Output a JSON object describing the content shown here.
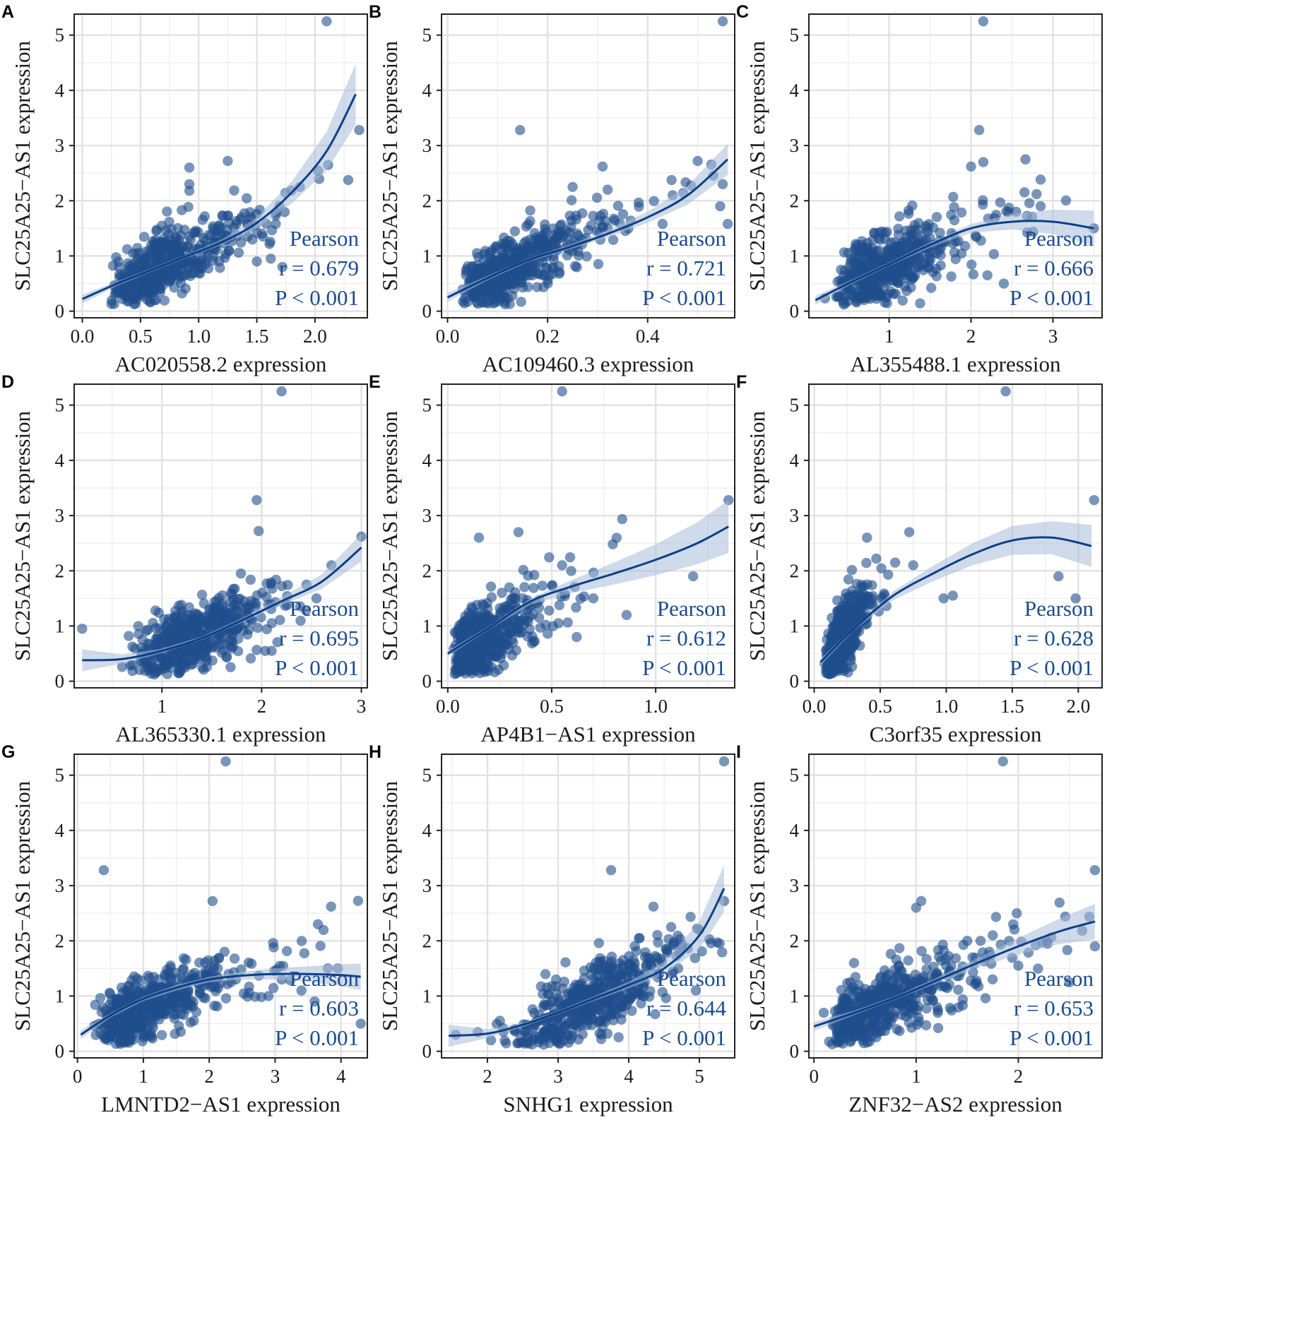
{
  "colors": {
    "point": "#1f4e8c",
    "line": "#0c3f86",
    "band": "#a8bcd8",
    "stat": "#1a4b8f",
    "grid": "#e3e3e3"
  },
  "chart_data": [
    {
      "panel": "A",
      "type": "scatter",
      "xlabel": "AC020558.2 expression",
      "ylabel": "SLC25A25−AS1 expression",
      "xlim": [
        -0.07,
        2.45
      ],
      "ylim": [
        -0.12,
        5.38
      ],
      "xticks": [
        0.0,
        0.5,
        1.0,
        1.5,
        2.0
      ],
      "xtick_labels": [
        "0.0",
        "0.5",
        "1.0",
        "1.5",
        "2.0"
      ],
      "yticks": [
        0,
        1,
        2,
        3,
        4,
        5
      ],
      "ytick_labels": [
        "0",
        "1",
        "2",
        "3",
        "4",
        "5"
      ],
      "stats": {
        "method": "Pearson",
        "r": "r = 0.679",
        "p": "P < 0.001"
      },
      "cloud": {
        "x_median": 0.7,
        "x_spread": 0.3,
        "slope": 1.0,
        "intercept": 0.15,
        "noise": 0.28,
        "n": 480,
        "x_min": 0.0,
        "x_max": 2.4
      },
      "outliers": [
        [
          2.1,
          5.25
        ],
        [
          2.38,
          3.28
        ],
        [
          1.25,
          2.72
        ],
        [
          0.92,
          2.3
        ],
        [
          0.92,
          2.18
        ],
        [
          0.92,
          2.6
        ],
        [
          1.72,
          0.8
        ],
        [
          1.62,
          0.95
        ],
        [
          1.5,
          0.9
        ],
        [
          1.87,
          2.25
        ]
      ],
      "fit": {
        "x": [
          0.0,
          0.3,
          0.6,
          0.9,
          1.2,
          1.5,
          1.8,
          2.1,
          2.35
        ],
        "y": [
          0.22,
          0.5,
          0.75,
          1.0,
          1.25,
          1.6,
          2.15,
          2.9,
          3.93
        ],
        "se": [
          0.08,
          0.04,
          0.03,
          0.03,
          0.05,
          0.1,
          0.2,
          0.35,
          0.55
        ]
      }
    },
    {
      "panel": "B",
      "type": "scatter",
      "xlabel": "AC109460.3 expression",
      "ylabel": "SLC25A25−AS1 expression",
      "xlim": [
        -0.012,
        0.574
      ],
      "ylim": [
        -0.12,
        5.38
      ],
      "xticks": [
        0.0,
        0.2,
        0.4
      ],
      "xtick_labels": [
        "0.0",
        "0.2",
        "0.4"
      ],
      "yticks": [
        0,
        1,
        2,
        3,
        4,
        5
      ],
      "ytick_labels": [
        "0",
        "1",
        "2",
        "3",
        "4",
        "5"
      ],
      "stats": {
        "method": "Pearson",
        "r": "r = 0.721",
        "p": "P < 0.001"
      },
      "cloud": {
        "x_median": 0.13,
        "x_spread": 0.07,
        "slope": 4.2,
        "intercept": 0.25,
        "noise": 0.28,
        "n": 480,
        "x_min": 0.0,
        "x_max": 0.56
      },
      "outliers": [
        [
          0.55,
          5.25
        ],
        [
          0.145,
          3.28
        ],
        [
          0.5,
          2.72
        ],
        [
          0.31,
          2.62
        ],
        [
          0.55,
          2.3
        ],
        [
          0.545,
          1.9
        ],
        [
          0.56,
          1.58
        ],
        [
          0.25,
          2.25
        ],
        [
          0.32,
          2.2
        ],
        [
          0.45,
          2.1
        ]
      ],
      "fit": {
        "x": [
          0.0,
          0.08,
          0.16,
          0.24,
          0.32,
          0.4,
          0.48,
          0.56
        ],
        "y": [
          0.25,
          0.6,
          0.92,
          1.15,
          1.4,
          1.7,
          2.1,
          2.75
        ],
        "se": [
          0.08,
          0.04,
          0.03,
          0.04,
          0.07,
          0.1,
          0.17,
          0.28
        ]
      }
    },
    {
      "panel": "C",
      "type": "scatter",
      "xlabel": "AL355488.1 expression",
      "ylabel": "SLC25A25−AS1 expression",
      "xlim": [
        0.02,
        3.6
      ],
      "ylim": [
        -0.12,
        5.38
      ],
      "xticks": [
        1,
        2,
        3
      ],
      "xtick_labels": [
        "1",
        "2",
        "3"
      ],
      "yticks": [
        0,
        1,
        2,
        3,
        4,
        5
      ],
      "ytick_labels": [
        "0",
        "1",
        "2",
        "3",
        "4",
        "5"
      ],
      "stats": {
        "method": "Pearson",
        "r": "r = 0.666",
        "p": "P < 0.001"
      },
      "cloud": {
        "x_median": 1.0,
        "x_spread": 0.4,
        "slope": 0.65,
        "intercept": 0.15,
        "noise": 0.3,
        "n": 480,
        "x_min": 0.1,
        "x_max": 3.5
      },
      "outliers": [
        [
          2.15,
          5.25
        ],
        [
          2.1,
          3.28
        ],
        [
          2.15,
          2.7
        ],
        [
          2.0,
          2.62
        ],
        [
          2.8,
          2.12
        ],
        [
          3.5,
          1.5
        ],
        [
          2.85,
          1.9
        ],
        [
          2.55,
          1.8
        ],
        [
          2.2,
          0.65
        ],
        [
          2.4,
          0.5
        ]
      ],
      "fit": {
        "x": [
          0.1,
          0.5,
          1.0,
          1.5,
          2.0,
          2.5,
          3.0,
          3.5
        ],
        "y": [
          0.2,
          0.5,
          0.85,
          1.2,
          1.5,
          1.62,
          1.62,
          1.5
        ],
        "se": [
          0.08,
          0.04,
          0.03,
          0.05,
          0.08,
          0.14,
          0.22,
          0.32
        ]
      }
    },
    {
      "panel": "D",
      "type": "scatter",
      "xlabel": "AL365330.1 expression",
      "ylabel": "SLC25A25−AS1 expression",
      "xlim": [
        0.12,
        3.06
      ],
      "ylim": [
        -0.12,
        5.38
      ],
      "xticks": [
        1,
        2,
        3
      ],
      "xtick_labels": [
        "1",
        "2",
        "3"
      ],
      "yticks": [
        0,
        1,
        2,
        3,
        4,
        5
      ],
      "ytick_labels": [
        "0",
        "1",
        "2",
        "3",
        "4",
        "5"
      ],
      "stats": {
        "method": "Pearson",
        "r": "r = 0.695",
        "p": "P < 0.001"
      },
      "cloud": {
        "x_median": 1.35,
        "x_spread": 0.35,
        "slope": 0.75,
        "intercept": -0.2,
        "noise": 0.3,
        "n": 480,
        "x_min": 0.3,
        "x_max": 3.0
      },
      "outliers": [
        [
          2.2,
          5.25
        ],
        [
          1.95,
          3.28
        ],
        [
          1.97,
          2.72
        ],
        [
          3.0,
          2.62
        ],
        [
          0.2,
          0.95
        ],
        [
          2.7,
          2.1
        ],
        [
          2.55,
          1.5
        ],
        [
          2.45,
          1.75
        ],
        [
          2.1,
          0.55
        ]
      ],
      "fit": {
        "x": [
          0.2,
          0.6,
          1.0,
          1.4,
          1.8,
          2.2,
          2.6,
          3.0
        ],
        "y": [
          0.38,
          0.4,
          0.55,
          0.78,
          1.1,
          1.45,
          1.8,
          2.42
        ],
        "se": [
          0.2,
          0.08,
          0.04,
          0.03,
          0.04,
          0.07,
          0.13,
          0.25
        ]
      }
    },
    {
      "panel": "E",
      "type": "scatter",
      "xlabel": "AP4B1−AS1 expression",
      "ylabel": "SLC25A25−AS1 expression",
      "xlim": [
        -0.03,
        1.38
      ],
      "ylim": [
        -0.12,
        5.38
      ],
      "xticks": [
        0.0,
        0.5,
        1.0
      ],
      "xtick_labels": [
        "0.0",
        "0.5",
        "1.0"
      ],
      "yticks": [
        0,
        1,
        2,
        3,
        4,
        5
      ],
      "ytick_labels": [
        "0",
        "1",
        "2",
        "3",
        "4",
        "5"
      ],
      "stats": {
        "method": "Pearson",
        "r": "r = 0.612",
        "p": "P < 0.001"
      },
      "cloud": {
        "x_median": 0.16,
        "x_spread": 0.1,
        "slope": 2.3,
        "intercept": 0.35,
        "noise": 0.32,
        "n": 480,
        "x_min": 0.0,
        "x_max": 1.35
      },
      "outliers": [
        [
          0.55,
          5.25
        ],
        [
          1.35,
          3.28
        ],
        [
          0.34,
          2.7
        ],
        [
          0.15,
          2.6
        ],
        [
          1.18,
          1.9
        ],
        [
          0.86,
          1.2
        ],
        [
          0.62,
          0.8
        ],
        [
          0.7,
          1.5
        ],
        [
          0.55,
          2.1
        ]
      ],
      "fit": {
        "x": [
          0.0,
          0.2,
          0.4,
          0.6,
          0.8,
          1.0,
          1.2,
          1.35
        ],
        "y": [
          0.5,
          0.97,
          1.45,
          1.72,
          1.95,
          2.2,
          2.5,
          2.8
        ],
        "se": [
          0.05,
          0.03,
          0.06,
          0.12,
          0.2,
          0.28,
          0.38,
          0.48
        ]
      }
    },
    {
      "panel": "F",
      "type": "scatter",
      "xlabel": "C3orf35 expression",
      "ylabel": "SLC25A25−AS1 expression",
      "xlim": [
        -0.04,
        2.18
      ],
      "ylim": [
        -0.12,
        5.38
      ],
      "xticks": [
        0.0,
        0.5,
        1.0,
        1.5,
        2.0
      ],
      "xtick_labels": [
        "0.0",
        "0.5",
        "1.0",
        "1.5",
        "2.0"
      ],
      "yticks": [
        0,
        1,
        2,
        3,
        4,
        5
      ],
      "ytick_labels": [
        "0",
        "1",
        "2",
        "3",
        "4",
        "5"
      ],
      "stats": {
        "method": "Pearson",
        "r": "r = 0.628",
        "p": "P < 0.001"
      },
      "cloud": {
        "x_median": 0.22,
        "x_spread": 0.08,
        "slope": 3.0,
        "intercept": 0.15,
        "noise": 0.3,
        "n": 480,
        "x_min": 0.05,
        "x_max": 2.1
      },
      "outliers": [
        [
          1.45,
          5.25
        ],
        [
          2.12,
          3.28
        ],
        [
          1.85,
          1.9
        ],
        [
          1.98,
          1.5
        ],
        [
          0.72,
          2.7
        ],
        [
          0.75,
          2.1
        ],
        [
          0.98,
          1.5
        ],
        [
          1.05,
          1.55
        ],
        [
          0.4,
          2.6
        ]
      ],
      "fit": {
        "x": [
          0.05,
          0.3,
          0.6,
          0.9,
          1.2,
          1.5,
          1.8,
          2.1
        ],
        "y": [
          0.35,
          0.95,
          1.55,
          1.95,
          2.3,
          2.55,
          2.6,
          2.45
        ],
        "se": [
          0.06,
          0.03,
          0.08,
          0.14,
          0.2,
          0.26,
          0.3,
          0.38
        ]
      }
    },
    {
      "panel": "G",
      "type": "scatter",
      "xlabel": "LMNTD2−AS1 expression",
      "ylabel": "SLC25A25−AS1 expression",
      "xlim": [
        -0.05,
        4.4
      ],
      "ylim": [
        -0.12,
        5.38
      ],
      "xticks": [
        0,
        1,
        2,
        3,
        4
      ],
      "xtick_labels": [
        "0",
        "1",
        "2",
        "3",
        "4"
      ],
      "yticks": [
        0,
        1,
        2,
        3,
        4,
        5
      ],
      "ytick_labels": [
        "0",
        "1",
        "2",
        "3",
        "4",
        "5"
      ],
      "stats": {
        "method": "Pearson",
        "r": "r = 0.603",
        "p": "P < 0.001"
      },
      "cloud": {
        "x_median": 1.1,
        "x_spread": 0.55,
        "slope": 0.45,
        "intercept": 0.3,
        "noise": 0.3,
        "n": 480,
        "x_min": 0.05,
        "x_max": 4.3
      },
      "outliers": [
        [
          2.25,
          5.25
        ],
        [
          0.4,
          3.28
        ],
        [
          2.05,
          2.72
        ],
        [
          3.85,
          2.62
        ],
        [
          3.65,
          2.3
        ],
        [
          4.3,
          0.5
        ],
        [
          3.8,
          1.5
        ],
        [
          3.95,
          1.5
        ],
        [
          3.4,
          1.1
        ],
        [
          3.6,
          0.9
        ],
        [
          3.1,
          1.3
        ],
        [
          2.9,
          1.0
        ]
      ],
      "fit": {
        "x": [
          0.05,
          0.5,
          1.0,
          1.5,
          2.0,
          2.5,
          3.0,
          3.5,
          4.0,
          4.3
        ],
        "y": [
          0.3,
          0.65,
          0.95,
          1.15,
          1.3,
          1.37,
          1.4,
          1.4,
          1.38,
          1.35
        ],
        "se": [
          0.08,
          0.04,
          0.04,
          0.05,
          0.05,
          0.07,
          0.1,
          0.14,
          0.2,
          0.24
        ]
      }
    },
    {
      "panel": "H",
      "type": "scatter",
      "xlabel": "SNHG1 expression",
      "ylabel": "SLC25A25−AS1 expression",
      "xlim": [
        1.35,
        5.5
      ],
      "ylim": [
        -0.12,
        5.38
      ],
      "xticks": [
        2,
        3,
        4,
        5
      ],
      "xtick_labels": [
        "2",
        "3",
        "4",
        "5"
      ],
      "yticks": [
        0,
        1,
        2,
        3,
        4,
        5
      ],
      "ytick_labels": [
        "0",
        "1",
        "2",
        "3",
        "4",
        "5"
      ],
      "stats": {
        "method": "Pearson",
        "r": "r = 0.644",
        "p": "P < 0.001"
      },
      "cloud": {
        "x_median": 3.4,
        "x_spread": 0.6,
        "slope": 0.65,
        "intercept": -1.35,
        "noise": 0.32,
        "n": 480,
        "x_min": 1.5,
        "x_max": 5.35
      },
      "outliers": [
        [
          5.35,
          5.25
        ],
        [
          3.75,
          3.28
        ],
        [
          5.35,
          2.72
        ],
        [
          4.35,
          2.62
        ],
        [
          4.6,
          2.25
        ],
        [
          5.0,
          2.2
        ],
        [
          1.55,
          0.3
        ],
        [
          2.05,
          0.2
        ],
        [
          4.7,
          1.5
        ],
        [
          4.95,
          1.1
        ]
      ],
      "fit": {
        "x": [
          1.45,
          2.0,
          2.5,
          3.0,
          3.5,
          4.0,
          4.5,
          5.0,
          5.35
        ],
        "y": [
          0.28,
          0.32,
          0.48,
          0.7,
          0.95,
          1.2,
          1.5,
          2.1,
          2.95
        ],
        "se": [
          0.2,
          0.08,
          0.04,
          0.03,
          0.04,
          0.06,
          0.12,
          0.25,
          0.42
        ]
      }
    },
    {
      "panel": "I",
      "type": "scatter",
      "xlabel": "ZNF32−AS2 expression",
      "ylabel": "SLC25A25−AS1 expression",
      "xlim": [
        -0.05,
        2.82
      ],
      "ylim": [
        -0.12,
        5.38
      ],
      "xticks": [
        0,
        1,
        2
      ],
      "xtick_labels": [
        "0",
        "1",
        "2"
      ],
      "yticks": [
        0,
        1,
        2,
        3,
        4,
        5
      ],
      "ytick_labels": [
        "0",
        "1",
        "2",
        "3",
        "4",
        "5"
      ],
      "stats": {
        "method": "Pearson",
        "r": "r = 0.653",
        "p": "P < 0.001"
      },
      "cloud": {
        "x_median": 0.65,
        "x_spread": 0.35,
        "slope": 0.8,
        "intercept": 0.3,
        "noise": 0.3,
        "n": 480,
        "x_min": 0.0,
        "x_max": 2.75
      },
      "outliers": [
        [
          1.85,
          5.25
        ],
        [
          2.75,
          3.28
        ],
        [
          1.05,
          2.72
        ],
        [
          1.0,
          2.6
        ],
        [
          1.95,
          2.3
        ],
        [
          2.75,
          1.9
        ],
        [
          2.0,
          1.55
        ],
        [
          1.75,
          2.1
        ],
        [
          2.5,
          1.25
        ],
        [
          1.5,
          2.0
        ]
      ],
      "fit": {
        "x": [
          0.0,
          0.4,
          0.8,
          1.2,
          1.6,
          2.0,
          2.4,
          2.75
        ],
        "y": [
          0.45,
          0.7,
          0.97,
          1.28,
          1.6,
          1.9,
          2.17,
          2.35
        ],
        "se": [
          0.08,
          0.04,
          0.03,
          0.05,
          0.09,
          0.15,
          0.23,
          0.32
        ]
      }
    }
  ]
}
